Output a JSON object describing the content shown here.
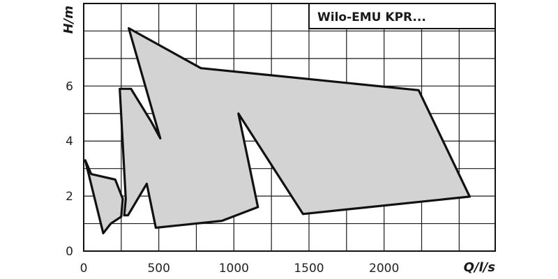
{
  "chart_data": {
    "type": "area",
    "title": "Wilo-EMU KPR...",
    "xlabel": "Q/l/s",
    "ylabel": "H/m",
    "xlim": [
      0,
      2740
    ],
    "ylim": [
      0,
      9
    ],
    "x_ticks": [
      0,
      500,
      1000,
      1500,
      2000
    ],
    "y_ticks": [
      0,
      2,
      4,
      6
    ],
    "grid": true,
    "fill_color": "#d3d3d3",
    "outline_color": "#111111",
    "series": [
      {
        "points": [
          [
            300,
            8.1
          ],
          [
            780,
            6.65
          ],
          [
            2230,
            5.85
          ],
          [
            2570,
            1.98
          ],
          [
            1460,
            1.35
          ],
          [
            1030,
            5.0
          ],
          [
            1160,
            1.6
          ],
          [
            920,
            1.1
          ],
          [
            480,
            0.85
          ],
          [
            420,
            2.45
          ],
          [
            295,
            1.3
          ],
          [
            270,
            1.3
          ],
          [
            280,
            1.9
          ],
          [
            240,
            5.9
          ],
          [
            315,
            5.9
          ],
          [
            450,
            4.7
          ],
          [
            510,
            4.1
          ]
        ]
      },
      {
        "points": [
          [
            10,
            3.3
          ],
          [
            50,
            2.8
          ],
          [
            210,
            2.6
          ],
          [
            260,
            1.9
          ],
          [
            250,
            1.25
          ],
          [
            180,
            1.0
          ],
          [
            130,
            0.65
          ]
        ]
      }
    ]
  }
}
